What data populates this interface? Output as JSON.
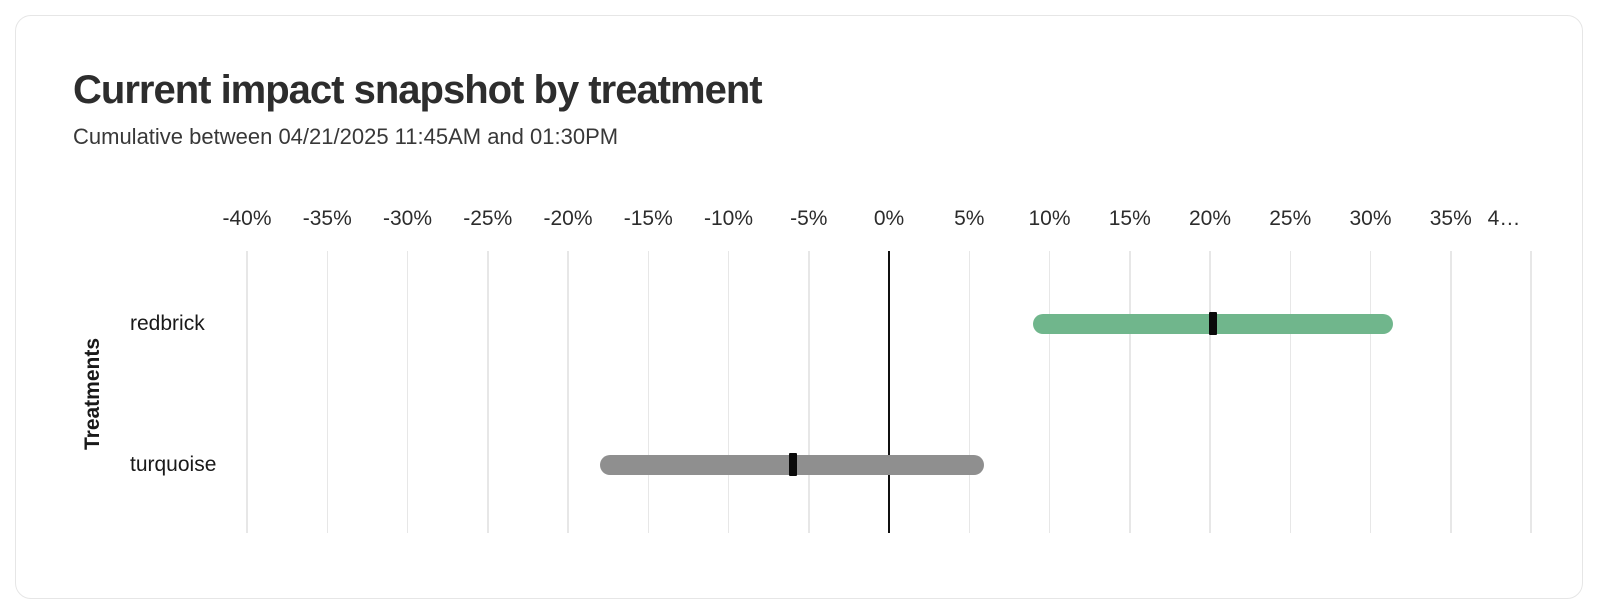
{
  "card": {
    "title": "Current impact snapshot by treatment",
    "subtitle": "Cumulative between 04/21/2025 11:45AM and 01:30PM"
  },
  "chart_data": {
    "type": "bar",
    "variant": "horizontal-interval-range",
    "title": "Current impact snapshot by treatment",
    "subtitle": "Cumulative between 04/21/2025 11:45AM and 01:30PM",
    "xlabel": "",
    "ylabel": "Treatments",
    "unit": "%",
    "xlim": [
      -40,
      40
    ],
    "tick_step": 5,
    "grid": true,
    "legend": "none",
    "axis_ticks": [
      {
        "value": -40,
        "label": "-40%"
      },
      {
        "value": -35,
        "label": "-35%"
      },
      {
        "value": -30,
        "label": "-30%"
      },
      {
        "value": -25,
        "label": "-25%"
      },
      {
        "value": -20,
        "label": "-20%"
      },
      {
        "value": -15,
        "label": "-15%"
      },
      {
        "value": -10,
        "label": "-10%"
      },
      {
        "value": -5,
        "label": "-5%"
      },
      {
        "value": 0,
        "label": "0%"
      },
      {
        "value": 5,
        "label": "5%"
      },
      {
        "value": 10,
        "label": "10%"
      },
      {
        "value": 15,
        "label": "15%"
      },
      {
        "value": 20,
        "label": "20%"
      },
      {
        "value": 25,
        "label": "25%"
      },
      {
        "value": 30,
        "label": "30%"
      },
      {
        "value": 35,
        "label": "35%"
      },
      {
        "value": 40,
        "label": "4…"
      }
    ],
    "categories": [
      "redbrick",
      "turquoise"
    ],
    "series": [
      {
        "name": "redbrick",
        "lower": 9.0,
        "mean": 20.2,
        "upper": 31.4,
        "color": "#70b68c"
      },
      {
        "name": "turquoise",
        "lower": -18.0,
        "mean": -6.0,
        "upper": 5.9,
        "color": "#8f8f8f"
      }
    ],
    "colors": {
      "mean_marker": "#0a0a0a",
      "gridline": "#e7e7e7",
      "zero_line": "#101010"
    }
  }
}
